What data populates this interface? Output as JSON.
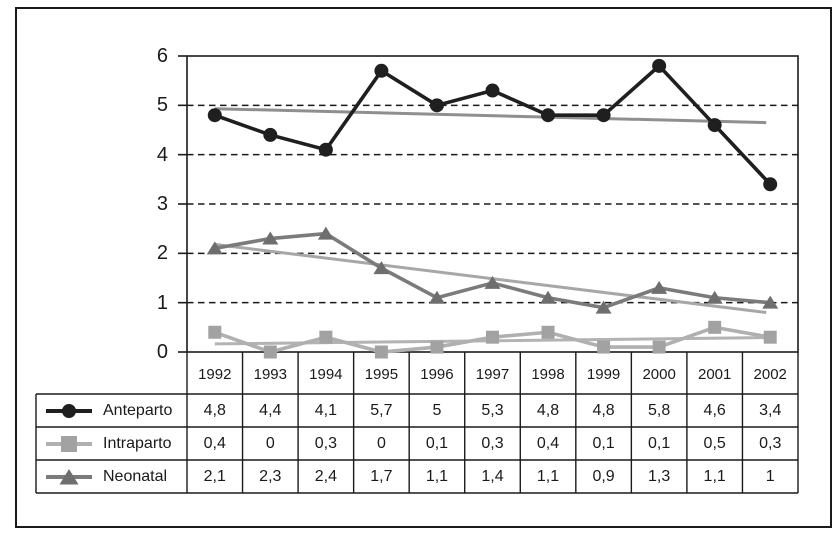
{
  "figure": {
    "background": "#ffffff",
    "frame_color": "#1a1a1a",
    "grid_color": "#1a1a1a",
    "text_color": "#1a1a1a"
  },
  "chart_data": {
    "type": "line",
    "title": "",
    "xlabel": "",
    "ylabel": "",
    "categories": [
      "1992",
      "1993",
      "1994",
      "1995",
      "1996",
      "1997",
      "1998",
      "1999",
      "2000",
      "2001",
      "2002"
    ],
    "series": [
      {
        "name": "Anteparto",
        "marker": "circle",
        "color": "#1f1f1f",
        "marker_color": "#1f1f1f",
        "trendline": true,
        "trend_color": "#8f8f8f",
        "values": [
          4.8,
          4.4,
          4.1,
          5.7,
          5,
          5.3,
          4.8,
          4.8,
          5.8,
          4.6,
          3.4
        ]
      },
      {
        "name": "Intraparto",
        "marker": "square",
        "color": "#b0b0b0",
        "marker_color": "#a2a2a2",
        "trendline": true,
        "trend_color": "#b3b3b3",
        "values": [
          0.4,
          0,
          0.3,
          0,
          0.1,
          0.3,
          0.4,
          0.1,
          0.1,
          0.5,
          0.3
        ]
      },
      {
        "name": "Neonatal",
        "marker": "triangle",
        "color": "#7b7b7b",
        "marker_color": "#6e6e6e",
        "trendline": true,
        "trend_color": "#a7a7a7",
        "values": [
          2.1,
          2.3,
          2.4,
          1.7,
          1.1,
          1.4,
          1.1,
          0.9,
          1.3,
          1.1,
          1
        ]
      }
    ],
    "ylim": [
      0,
      6
    ],
    "ytick_step": 1,
    "ytick_labels": [
      "0",
      "1",
      "2",
      "3",
      "4",
      "5",
      "6"
    ],
    "grid": "horizontal-dashed",
    "legend_position": "data-table-left"
  },
  "table": {
    "rows": [
      {
        "label": "Anteparto",
        "display": [
          "4,8",
          "4,4",
          "4,1",
          "5,7",
          "5",
          "5,3",
          "4,8",
          "4,8",
          "5,8",
          "4,6",
          "3,4"
        ]
      },
      {
        "label": "Intraparto",
        "display": [
          "0,4",
          "0",
          "0,3",
          "0",
          "0,1",
          "0,3",
          "0,4",
          "0,1",
          "0,1",
          "0,5",
          "0,3"
        ]
      },
      {
        "label": "Neonatal",
        "display": [
          "2,1",
          "2,3",
          "2,4",
          "1,7",
          "1,1",
          "1,4",
          "1,1",
          "0,9",
          "1,3",
          "1,1",
          "1"
        ]
      }
    ]
  }
}
